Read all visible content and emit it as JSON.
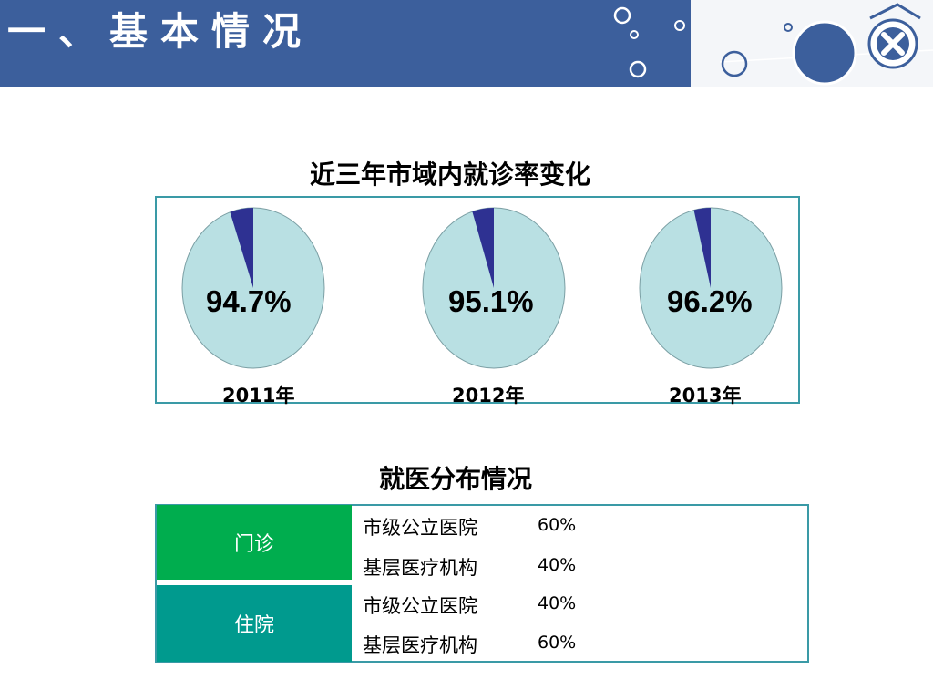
{
  "header": {
    "title": "一、基本情况",
    "bg_color": "#3c5f9c"
  },
  "pie_section": {
    "title": "近三年市域内就诊率变化"
  },
  "chart_data": {
    "type": "pie",
    "title": "近三年市域内就诊率变化",
    "colors": {
      "main": "#b9e0e3",
      "rest": "#2e3192"
    },
    "pies": [
      {
        "year": "2011年",
        "label": "94.7%",
        "value": 94.7
      },
      {
        "year": "2012年",
        "label": "95.1%",
        "value": 95.1
      },
      {
        "year": "2013年",
        "label": "96.2%",
        "value": 96.2
      }
    ]
  },
  "dist_section": {
    "title": "就医分布情况",
    "groups": [
      {
        "name": "门诊",
        "color": "#00ad4e",
        "rows": [
          {
            "label": "市级公立医院",
            "value": "60%"
          },
          {
            "label": "基层医疗机构",
            "value": "40%"
          }
        ]
      },
      {
        "name": "住院",
        "color": "#009a8e",
        "rows": [
          {
            "label": "市级公立医院",
            "value": "40%"
          },
          {
            "label": "基层医疗机构",
            "value": "60%"
          }
        ]
      }
    ]
  }
}
